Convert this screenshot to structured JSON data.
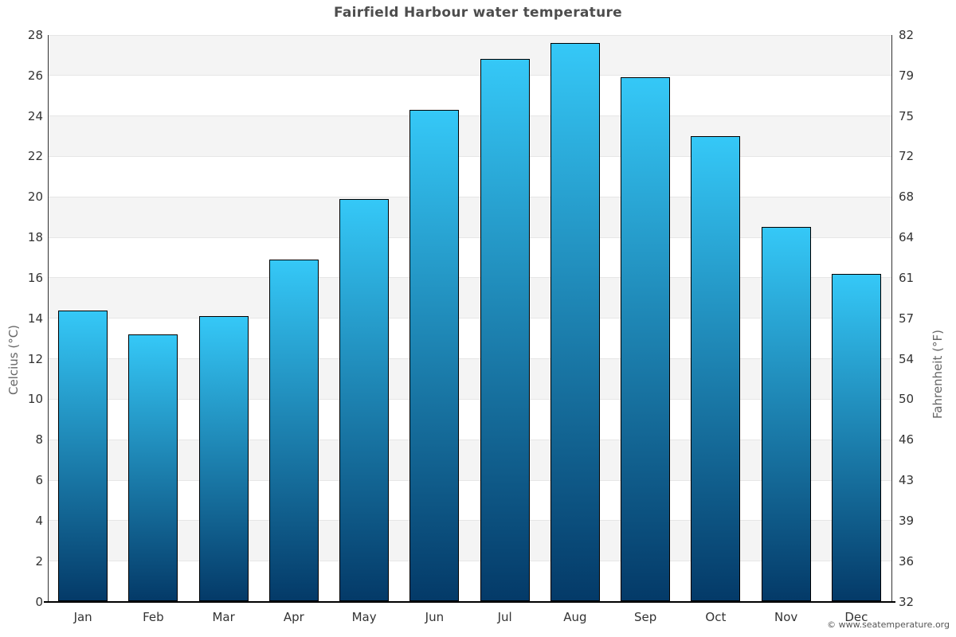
{
  "title": "Fairfield Harbour water temperature",
  "copyright": "© www.seatemperature.org",
  "chart_data": {
    "type": "bar",
    "title": "Fairfield Harbour water temperature",
    "categories": [
      "Jan",
      "Feb",
      "Mar",
      "Apr",
      "May",
      "Jun",
      "Jul",
      "Aug",
      "Sep",
      "Oct",
      "Nov",
      "Dec"
    ],
    "values": [
      14.4,
      13.2,
      14.1,
      16.9,
      19.9,
      24.3,
      26.8,
      27.6,
      25.9,
      23.0,
      18.5,
      16.2
    ],
    "unit": "°C",
    "ylabel_left": "Celcius (°C)",
    "ylabel_right": "Fahrenheit (°F)",
    "ylim_left": [
      0,
      28
    ],
    "yticks_left": [
      0,
      2,
      4,
      6,
      8,
      10,
      12,
      14,
      16,
      18,
      20,
      22,
      24,
      26,
      28
    ],
    "yticks_right_labels": [
      "32",
      "36",
      "39",
      "43",
      "46",
      "50",
      "54",
      "57",
      "61",
      "64",
      "68",
      "72",
      "75",
      "79",
      "82"
    ],
    "grid": "alternate-bands-horizontal",
    "legend": "none",
    "colors": {
      "bar_top": "#35c8f7",
      "bar_bottom": "#043a68",
      "bar_border": "#000000",
      "band": "#f4f4f4",
      "gridline": "#e6e6e6",
      "title": "#4d4d4d",
      "tick_label": "#333333",
      "axis_title": "#666666"
    }
  }
}
